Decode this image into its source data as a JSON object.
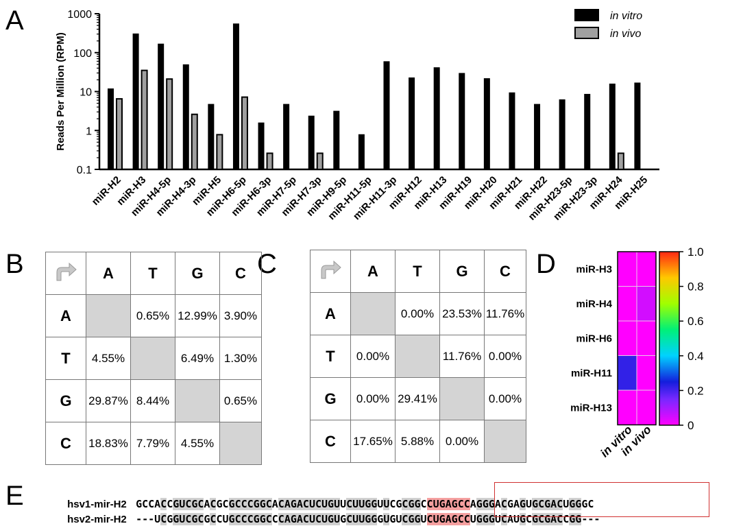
{
  "panel_labels": {
    "a": "A",
    "b": "B",
    "c": "C",
    "d": "D",
    "e": "E"
  },
  "chart_data": [
    {
      "type": "bar",
      "ylabel": "Reads Per Million (RPM)",
      "yscale": "log",
      "ylim": [
        0.1,
        1000
      ],
      "yticks": [
        "0.1",
        "1",
        "10",
        "100",
        "1000"
      ],
      "legend": {
        "placement": "top-right",
        "entries": [
          "in vitro",
          "in vivo"
        ]
      },
      "categories": [
        "miR-H2",
        "miR-H3",
        "miR-H4-5p",
        "miR-H4-3p",
        "miR-H5",
        "miR-H6-5p",
        "miR-H6-3p",
        "miR-H7-5p",
        "miR-H7-3p",
        "miR-H9-5p",
        "miR-H11-5p",
        "miR-H11-3p",
        "miR-H12",
        "miR-H13",
        "miR-H19",
        "miR-H20",
        "miR-H21",
        "miR-H22",
        "miR-H23-5p",
        "miR-H23-3p",
        "miR-H24",
        "miR-H25"
      ],
      "series": [
        {
          "name": "in vitro",
          "color": "#000000",
          "values": [
            12,
            310,
            170,
            50,
            4.8,
            560,
            1.6,
            4.8,
            2.4,
            3.2,
            0.8,
            60,
            23,
            42,
            30,
            22,
            9.5,
            4.8,
            6.3,
            8.7,
            16,
            17
          ]
        },
        {
          "name": "in vivo",
          "color": "#a0a0a0",
          "values": [
            6.5,
            35,
            21,
            2.6,
            0.78,
            7.2,
            0.26,
            null,
            0.26,
            null,
            null,
            null,
            null,
            null,
            null,
            null,
            null,
            null,
            null,
            null,
            0.26,
            null
          ]
        }
      ]
    },
    {
      "type": "table",
      "columns": [
        "A",
        "T",
        "G",
        "C"
      ],
      "rows": [
        {
          "label": "A",
          "cells": [
            "",
            "0.65%",
            "12.99%",
            "3.90%"
          ]
        },
        {
          "label": "T",
          "cells": [
            "4.55%",
            "",
            "6.49%",
            "1.30%"
          ]
        },
        {
          "label": "G",
          "cells": [
            "29.87%",
            "8.44%",
            "",
            "0.65%"
          ]
        },
        {
          "label": "C",
          "cells": [
            "18.83%",
            "7.79%",
            "4.55%",
            ""
          ]
        }
      ]
    },
    {
      "type": "table",
      "columns": [
        "A",
        "T",
        "G",
        "C"
      ],
      "rows": [
        {
          "label": "A",
          "cells": [
            "",
            "0.00%",
            "23.53%",
            "11.76%"
          ]
        },
        {
          "label": "T",
          "cells": [
            "0.00%",
            "",
            "11.76%",
            "0.00%"
          ]
        },
        {
          "label": "G",
          "cells": [
            "0.00%",
            "29.41%",
            "",
            "0.00%"
          ]
        },
        {
          "label": "C",
          "cells": [
            "17.65%",
            "5.88%",
            "0.00%",
            ""
          ]
        }
      ]
    },
    {
      "type": "heatmap",
      "rows": [
        "miR-H3",
        "miR-H4",
        "miR-H6",
        "miR-H11",
        "miR-H13"
      ],
      "columns": [
        "in vitro",
        "in vivo"
      ],
      "values": [
        [
          0,
          0
        ],
        [
          0,
          0.05
        ],
        [
          0,
          0
        ],
        [
          0.22,
          0
        ],
        [
          0,
          0
        ]
      ],
      "colorbar": {
        "range": [
          0,
          1.0
        ],
        "ticks": [
          "0",
          "0.2",
          "0.4",
          "0.6",
          "0.8",
          "1.0"
        ]
      }
    }
  ],
  "sequences": [
    {
      "name": "hsv1-mir-H2",
      "seq": "GCCACCGUCGCACGCGCCCGGCACAGACUCUGUUCUUGGUUCGCGGCCUGAGCCAGGGACGAGUGCGACUGGGC"
    },
    {
      "name": "hsv2-mir-H2",
      "seq": "---UCGGUCGCGCCUGCCCGGCCCAGACUCUGUGCUUGGGUGUCGGUCUGAGCCUGGGUCAUGCGCGACCGG---"
    }
  ]
}
